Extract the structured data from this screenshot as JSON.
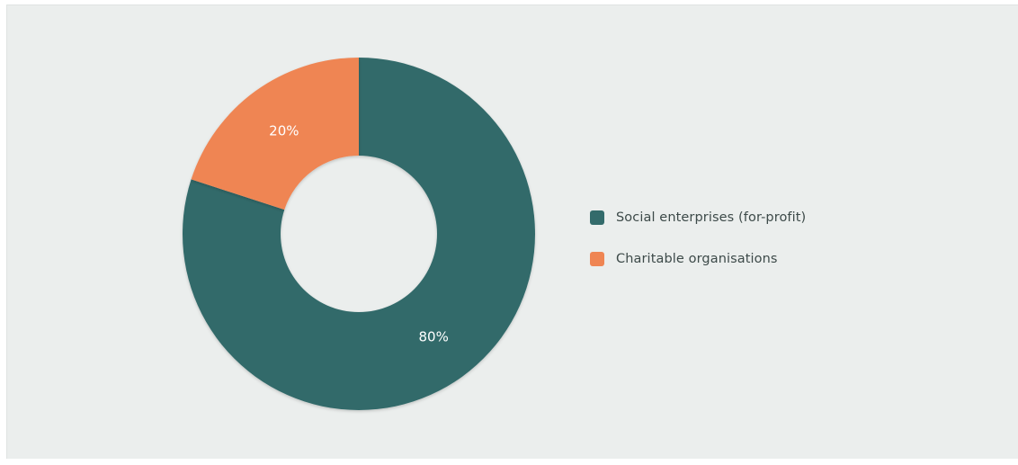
{
  "chart_data": {
    "type": "pie",
    "donut": true,
    "slices": [
      {
        "label": "Social enterprises (for-profit)",
        "value": 80,
        "display": "80%",
        "color": "#336b6b"
      },
      {
        "label": "Charitable organisations",
        "value": 20,
        "display": "20%",
        "color": "#ef8553"
      }
    ],
    "legend_position": "right",
    "background": "#ebeeed"
  }
}
